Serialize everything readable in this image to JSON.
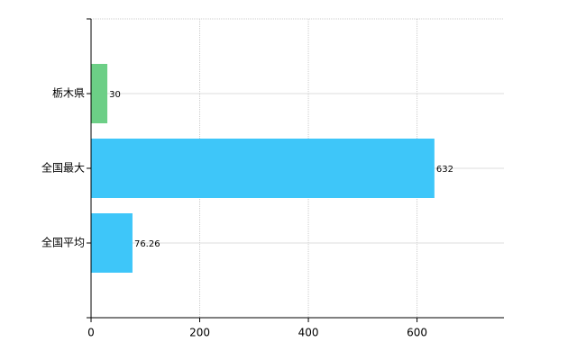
{
  "chart_data": {
    "type": "bar",
    "orientation": "horizontal",
    "categories": [
      "栃木県",
      "全国最大",
      "全国平均"
    ],
    "values": [
      30,
      632,
      76.26
    ],
    "colors": [
      "#6ccf86",
      "#3ec6f9",
      "#3ec6f9"
    ],
    "xlim": [
      0,
      760
    ],
    "xticks": [
      0,
      200,
      400,
      600
    ],
    "grid": true
  }
}
